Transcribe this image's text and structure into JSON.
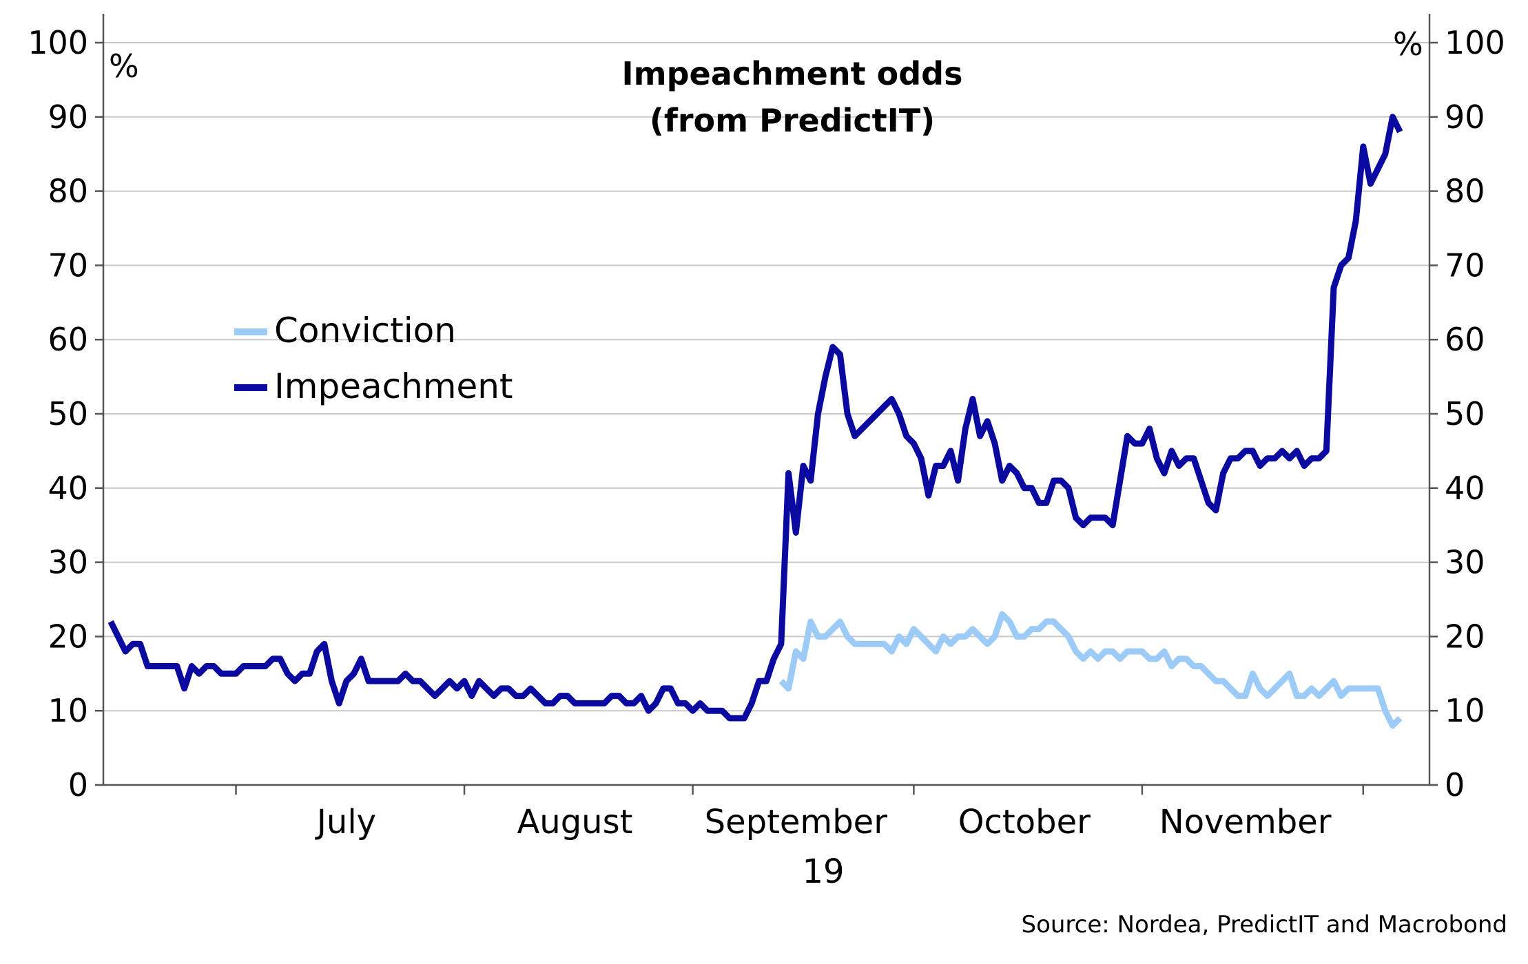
{
  "chart_data": {
    "type": "line",
    "title": [
      "Impeachment odds",
      "(from PredictIT)"
    ],
    "y_unit_left": "%",
    "y_unit_right": "%",
    "ylim": [
      0,
      100
    ],
    "yticks": [
      0,
      10,
      20,
      30,
      40,
      50,
      60,
      70,
      80,
      90,
      100
    ],
    "x_range": [
      "2019-06-13",
      "2019-12-10"
    ],
    "x_month_labels": [
      {
        "label": "July",
        "center": "2019-07-16"
      },
      {
        "label": "August",
        "center": "2019-08-16"
      },
      {
        "label": "September",
        "center": "2019-09-15"
      },
      {
        "label": "October",
        "center": "2019-10-16"
      },
      {
        "label": "November",
        "center": "2019-11-15"
      }
    ],
    "x_month_boundaries": [
      "2019-07-01",
      "2019-08-01",
      "2019-09-01",
      "2019-10-01",
      "2019-11-01",
      "2019-12-01"
    ],
    "x_year_label": "19",
    "legend": {
      "position": "left-middle",
      "entries": [
        "Conviction",
        "Impeachment"
      ]
    },
    "grid": true,
    "series": [
      {
        "name": "Impeachment",
        "color": "#0a0aa0",
        "points": [
          [
            "2019-06-14",
            22
          ],
          [
            "2019-06-16",
            18
          ],
          [
            "2019-06-17",
            19
          ],
          [
            "2019-06-18",
            19
          ],
          [
            "2019-06-19",
            16
          ],
          [
            "2019-06-21",
            16
          ],
          [
            "2019-06-23",
            16
          ],
          [
            "2019-06-24",
            13
          ],
          [
            "2019-06-25",
            16
          ],
          [
            "2019-06-26",
            15
          ],
          [
            "2019-06-27",
            16
          ],
          [
            "2019-06-28",
            16
          ],
          [
            "2019-06-29",
            15
          ],
          [
            "2019-07-01",
            15
          ],
          [
            "2019-07-02",
            16
          ],
          [
            "2019-07-04",
            16
          ],
          [
            "2019-07-05",
            16
          ],
          [
            "2019-07-06",
            17
          ],
          [
            "2019-07-07",
            17
          ],
          [
            "2019-07-08",
            15
          ],
          [
            "2019-07-09",
            14
          ],
          [
            "2019-07-10",
            15
          ],
          [
            "2019-07-11",
            15
          ],
          [
            "2019-07-12",
            18
          ],
          [
            "2019-07-13",
            19
          ],
          [
            "2019-07-14",
            14
          ],
          [
            "2019-07-15",
            11
          ],
          [
            "2019-07-16",
            14
          ],
          [
            "2019-07-17",
            15
          ],
          [
            "2019-07-18",
            17
          ],
          [
            "2019-07-19",
            14
          ],
          [
            "2019-07-21",
            14
          ],
          [
            "2019-07-23",
            14
          ],
          [
            "2019-07-24",
            15
          ],
          [
            "2019-07-25",
            14
          ],
          [
            "2019-07-26",
            14
          ],
          [
            "2019-07-27",
            13
          ],
          [
            "2019-07-28",
            12
          ],
          [
            "2019-07-29",
            13
          ],
          [
            "2019-07-30",
            14
          ],
          [
            "2019-07-31",
            13
          ],
          [
            "2019-08-01",
            14
          ],
          [
            "2019-08-02",
            12
          ],
          [
            "2019-08-03",
            14
          ],
          [
            "2019-08-04",
            13
          ],
          [
            "2019-08-05",
            12
          ],
          [
            "2019-08-06",
            13
          ],
          [
            "2019-08-07",
            13
          ],
          [
            "2019-08-08",
            12
          ],
          [
            "2019-08-09",
            12
          ],
          [
            "2019-08-10",
            13
          ],
          [
            "2019-08-11",
            12
          ],
          [
            "2019-08-12",
            11
          ],
          [
            "2019-08-13",
            11
          ],
          [
            "2019-08-14",
            12
          ],
          [
            "2019-08-15",
            12
          ],
          [
            "2019-08-16",
            11
          ],
          [
            "2019-08-18",
            11
          ],
          [
            "2019-08-20",
            11
          ],
          [
            "2019-08-21",
            12
          ],
          [
            "2019-08-22",
            12
          ],
          [
            "2019-08-23",
            11
          ],
          [
            "2019-08-24",
            11
          ],
          [
            "2019-08-25",
            12
          ],
          [
            "2019-08-26",
            10
          ],
          [
            "2019-08-27",
            11
          ],
          [
            "2019-08-28",
            13
          ],
          [
            "2019-08-29",
            13
          ],
          [
            "2019-08-30",
            11
          ],
          [
            "2019-08-31",
            11
          ],
          [
            "2019-09-01",
            10
          ],
          [
            "2019-09-02",
            11
          ],
          [
            "2019-09-03",
            10
          ],
          [
            "2019-09-05",
            10
          ],
          [
            "2019-09-06",
            9
          ],
          [
            "2019-09-08",
            9
          ],
          [
            "2019-09-09",
            11
          ],
          [
            "2019-09-10",
            14
          ],
          [
            "2019-09-11",
            14
          ],
          [
            "2019-09-12",
            17
          ],
          [
            "2019-09-13",
            19
          ],
          [
            "2019-09-14",
            42
          ],
          [
            "2019-09-15",
            34
          ],
          [
            "2019-09-16",
            43
          ],
          [
            "2019-09-17",
            41
          ],
          [
            "2019-09-18",
            50
          ],
          [
            "2019-09-19",
            55
          ],
          [
            "2019-09-20",
            59
          ],
          [
            "2019-09-21",
            58
          ],
          [
            "2019-09-22",
            50
          ],
          [
            "2019-09-23",
            47
          ],
          [
            "2019-09-25",
            49
          ],
          [
            "2019-09-27",
            51
          ],
          [
            "2019-09-28",
            52
          ],
          [
            "2019-09-29",
            50
          ],
          [
            "2019-09-30",
            47
          ],
          [
            "2019-10-01",
            46
          ],
          [
            "2019-10-02",
            44
          ],
          [
            "2019-10-03",
            39
          ],
          [
            "2019-10-04",
            43
          ],
          [
            "2019-10-05",
            43
          ],
          [
            "2019-10-06",
            45
          ],
          [
            "2019-10-07",
            41
          ],
          [
            "2019-10-08",
            48
          ],
          [
            "2019-10-09",
            52
          ],
          [
            "2019-10-10",
            47
          ],
          [
            "2019-10-11",
            49
          ],
          [
            "2019-10-12",
            46
          ],
          [
            "2019-10-13",
            41
          ],
          [
            "2019-10-14",
            43
          ],
          [
            "2019-10-15",
            42
          ],
          [
            "2019-10-16",
            40
          ],
          [
            "2019-10-17",
            40
          ],
          [
            "2019-10-18",
            38
          ],
          [
            "2019-10-19",
            38
          ],
          [
            "2019-10-20",
            41
          ],
          [
            "2019-10-21",
            41
          ],
          [
            "2019-10-22",
            40
          ],
          [
            "2019-10-23",
            36
          ],
          [
            "2019-10-24",
            35
          ],
          [
            "2019-10-25",
            36
          ],
          [
            "2019-10-27",
            36
          ],
          [
            "2019-10-28",
            35
          ],
          [
            "2019-10-29",
            41
          ],
          [
            "2019-10-30",
            47
          ],
          [
            "2019-10-31",
            46
          ],
          [
            "2019-11-01",
            46
          ],
          [
            "2019-11-02",
            48
          ],
          [
            "2019-11-03",
            44
          ],
          [
            "2019-11-04",
            42
          ],
          [
            "2019-11-05",
            45
          ],
          [
            "2019-11-06",
            43
          ],
          [
            "2019-11-07",
            44
          ],
          [
            "2019-11-08",
            44
          ],
          [
            "2019-11-09",
            41
          ],
          [
            "2019-11-10",
            38
          ],
          [
            "2019-11-11",
            37
          ],
          [
            "2019-11-12",
            42
          ],
          [
            "2019-11-13",
            44
          ],
          [
            "2019-11-14",
            44
          ],
          [
            "2019-11-15",
            45
          ],
          [
            "2019-11-16",
            45
          ],
          [
            "2019-11-17",
            43
          ],
          [
            "2019-11-18",
            44
          ],
          [
            "2019-11-19",
            44
          ],
          [
            "2019-11-20",
            45
          ],
          [
            "2019-11-21",
            44
          ],
          [
            "2019-11-22",
            45
          ],
          [
            "2019-11-23",
            43
          ],
          [
            "2019-11-24",
            44
          ],
          [
            "2019-11-25",
            44
          ],
          [
            "2019-11-26",
            45
          ],
          [
            "2019-11-27",
            67
          ],
          [
            "2019-11-28",
            70
          ],
          [
            "2019-11-29",
            71
          ],
          [
            "2019-11-30",
            76
          ],
          [
            "2019-12-01",
            86
          ],
          [
            "2019-12-02",
            81
          ],
          [
            "2019-12-03",
            83
          ],
          [
            "2019-12-04",
            85
          ],
          [
            "2019-12-05",
            90
          ],
          [
            "2019-12-06",
            88
          ]
        ]
      },
      {
        "name": "Conviction",
        "color": "#9ccbf7",
        "points": [
          [
            "2019-09-13",
            14
          ],
          [
            "2019-09-14",
            13
          ],
          [
            "2019-09-15",
            18
          ],
          [
            "2019-09-16",
            17
          ],
          [
            "2019-09-17",
            22
          ],
          [
            "2019-09-18",
            20
          ],
          [
            "2019-09-19",
            20
          ],
          [
            "2019-09-20",
            21
          ],
          [
            "2019-09-21",
            22
          ],
          [
            "2019-09-22",
            20
          ],
          [
            "2019-09-23",
            19
          ],
          [
            "2019-09-25",
            19
          ],
          [
            "2019-09-27",
            19
          ],
          [
            "2019-09-28",
            18
          ],
          [
            "2019-09-29",
            20
          ],
          [
            "2019-09-30",
            19
          ],
          [
            "2019-10-01",
            21
          ],
          [
            "2019-10-02",
            20
          ],
          [
            "2019-10-03",
            19
          ],
          [
            "2019-10-04",
            18
          ],
          [
            "2019-10-05",
            20
          ],
          [
            "2019-10-06",
            19
          ],
          [
            "2019-10-07",
            20
          ],
          [
            "2019-10-08",
            20
          ],
          [
            "2019-10-09",
            21
          ],
          [
            "2019-10-10",
            20
          ],
          [
            "2019-10-11",
            19
          ],
          [
            "2019-10-12",
            20
          ],
          [
            "2019-10-13",
            23
          ],
          [
            "2019-10-14",
            22
          ],
          [
            "2019-10-15",
            20
          ],
          [
            "2019-10-16",
            20
          ],
          [
            "2019-10-17",
            21
          ],
          [
            "2019-10-18",
            21
          ],
          [
            "2019-10-19",
            22
          ],
          [
            "2019-10-20",
            22
          ],
          [
            "2019-10-21",
            21
          ],
          [
            "2019-10-22",
            20
          ],
          [
            "2019-10-23",
            18
          ],
          [
            "2019-10-24",
            17
          ],
          [
            "2019-10-25",
            18
          ],
          [
            "2019-10-26",
            17
          ],
          [
            "2019-10-27",
            18
          ],
          [
            "2019-10-28",
            18
          ],
          [
            "2019-10-29",
            17
          ],
          [
            "2019-10-30",
            18
          ],
          [
            "2019-11-01",
            18
          ],
          [
            "2019-11-02",
            17
          ],
          [
            "2019-11-03",
            17
          ],
          [
            "2019-11-04",
            18
          ],
          [
            "2019-11-05",
            16
          ],
          [
            "2019-11-06",
            17
          ],
          [
            "2019-11-07",
            17
          ],
          [
            "2019-11-08",
            16
          ],
          [
            "2019-11-09",
            16
          ],
          [
            "2019-11-10",
            15
          ],
          [
            "2019-11-11",
            14
          ],
          [
            "2019-11-12",
            14
          ],
          [
            "2019-11-13",
            13
          ],
          [
            "2019-11-14",
            12
          ],
          [
            "2019-11-15",
            12
          ],
          [
            "2019-11-16",
            15
          ],
          [
            "2019-11-17",
            13
          ],
          [
            "2019-11-18",
            12
          ],
          [
            "2019-11-19",
            13
          ],
          [
            "2019-11-20",
            14
          ],
          [
            "2019-11-21",
            15
          ],
          [
            "2019-11-22",
            12
          ],
          [
            "2019-11-23",
            12
          ],
          [
            "2019-11-24",
            13
          ],
          [
            "2019-11-25",
            12
          ],
          [
            "2019-11-26",
            13
          ],
          [
            "2019-11-27",
            14
          ],
          [
            "2019-11-28",
            12
          ],
          [
            "2019-11-29",
            13
          ],
          [
            "2019-12-01",
            13
          ],
          [
            "2019-12-03",
            13
          ],
          [
            "2019-12-04",
            10
          ],
          [
            "2019-12-05",
            8
          ],
          [
            "2019-12-06",
            9
          ]
        ]
      }
    ]
  },
  "source": "Source: Nordea, PredictIT and Macrobond"
}
